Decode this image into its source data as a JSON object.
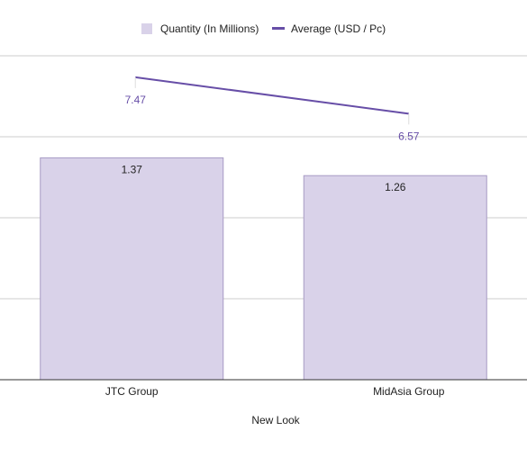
{
  "chart_data": {
    "type": "bar",
    "categories": [
      "JTC Group",
      "MidAsia Group"
    ],
    "xlabel": "New Look",
    "legend_position": "top",
    "grid": true,
    "series": [
      {
        "name": "Quantity (In Millions)",
        "type": "bar",
        "axis": "left",
        "values": [
          1.37,
          1.26
        ],
        "labels": [
          "1.37",
          "1.26"
        ],
        "color": "#d9d2e9",
        "border_color": "#a79bc4",
        "ylim": [
          0,
          2
        ]
      },
      {
        "name": "Average (USD / Pc)",
        "type": "line",
        "axis": "right",
        "values": [
          7.47,
          6.57
        ],
        "labels": [
          "7.47",
          "6.57"
        ],
        "color": "#674ea7",
        "ylim": [
          0,
          8
        ]
      }
    ]
  }
}
